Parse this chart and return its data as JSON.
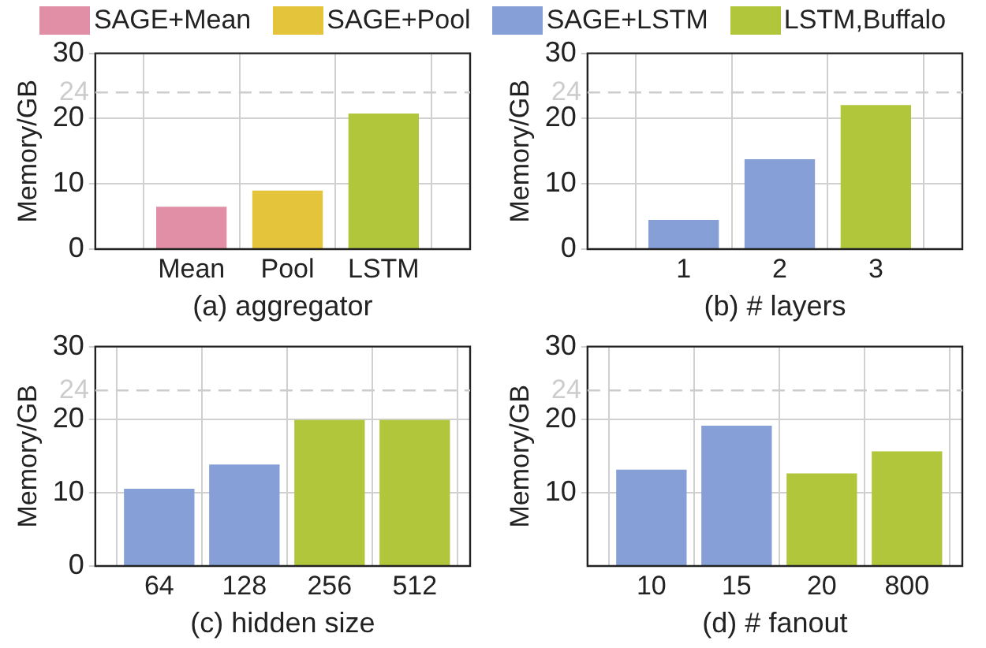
{
  "chart_data": [
    {
      "type": "bar",
      "xlabel": "(a) aggregator",
      "ylabel": "Memory/GB",
      "categories": [
        "Mean",
        "Pool",
        "LSTM"
      ],
      "ylim": [
        0,
        30
      ],
      "yticks": [
        0,
        10,
        20,
        30
      ],
      "grid": true,
      "legend": "top",
      "series": [
        {
          "name": "SAGE+Mean",
          "color": "#e08fa6",
          "values": [
            6.4,
            null,
            null
          ]
        },
        {
          "name": "SAGE+Pool",
          "color": "#e3c43b",
          "values": [
            null,
            8.9,
            null
          ]
        },
        {
          "name": "LSTM,Buffalo",
          "color": "#b2c63b",
          "values": [
            null,
            null,
            20.7
          ]
        }
      ],
      "ref_lines": [
        {
          "axis": "y",
          "value": 24,
          "label": "24",
          "color": "#cccccc",
          "line_style": "dashed"
        }
      ]
    },
    {
      "type": "bar",
      "xlabel": "(b) # layers",
      "ylabel": "Memory/GB",
      "categories": [
        "1",
        "2",
        "3"
      ],
      "ylim": [
        0,
        30
      ],
      "yticks": [
        0,
        10,
        20,
        30
      ],
      "grid": true,
      "legend": "top",
      "series": [
        {
          "name": "SAGE+LSTM",
          "color": "#869fd6",
          "values": [
            4.4,
            13.7,
            null
          ]
        },
        {
          "name": "LSTM,Buffalo",
          "color": "#b2c63b",
          "values": [
            null,
            null,
            22.0
          ]
        }
      ],
      "ref_lines": [
        {
          "axis": "y",
          "value": 24,
          "label": "24",
          "color": "#cccccc",
          "line_style": "dashed"
        }
      ]
    },
    {
      "type": "bar",
      "xlabel": "(c) hidden size",
      "ylabel": "Memory/GB",
      "categories": [
        "64",
        "128",
        "256",
        "512"
      ],
      "ylim": [
        0,
        30
      ],
      "yticks": [
        0,
        10,
        20,
        30
      ],
      "grid": true,
      "legend": "top",
      "series": [
        {
          "name": "SAGE+LSTM",
          "color": "#869fd6",
          "values": [
            10.5,
            13.8,
            null,
            null
          ]
        },
        {
          "name": "LSTM,Buffalo",
          "color": "#b2c63b",
          "values": [
            null,
            null,
            19.9,
            19.9
          ]
        }
      ],
      "ref_lines": [
        {
          "axis": "y",
          "value": 24,
          "label": "24",
          "color": "#cccccc",
          "line_style": "dashed"
        }
      ]
    },
    {
      "type": "bar",
      "xlabel": "(d) # fanout",
      "ylabel": "Memory/GB",
      "categories": [
        "10",
        "15",
        "20",
        "800"
      ],
      "ylim": [
        0,
        30
      ],
      "yticks": [
        10,
        20,
        30
      ],
      "grid": true,
      "legend": "top",
      "series": [
        {
          "name": "SAGE+LSTM",
          "color": "#869fd6",
          "values": [
            13.1,
            19.1,
            null,
            null
          ]
        },
        {
          "name": "LSTM,Buffalo",
          "color": "#b2c63b",
          "values": [
            null,
            null,
            12.6,
            15.6
          ]
        }
      ],
      "ref_lines": [
        {
          "axis": "y",
          "value": 24,
          "label": "24",
          "color": "#cccccc",
          "line_style": "dashed"
        }
      ]
    }
  ]
}
